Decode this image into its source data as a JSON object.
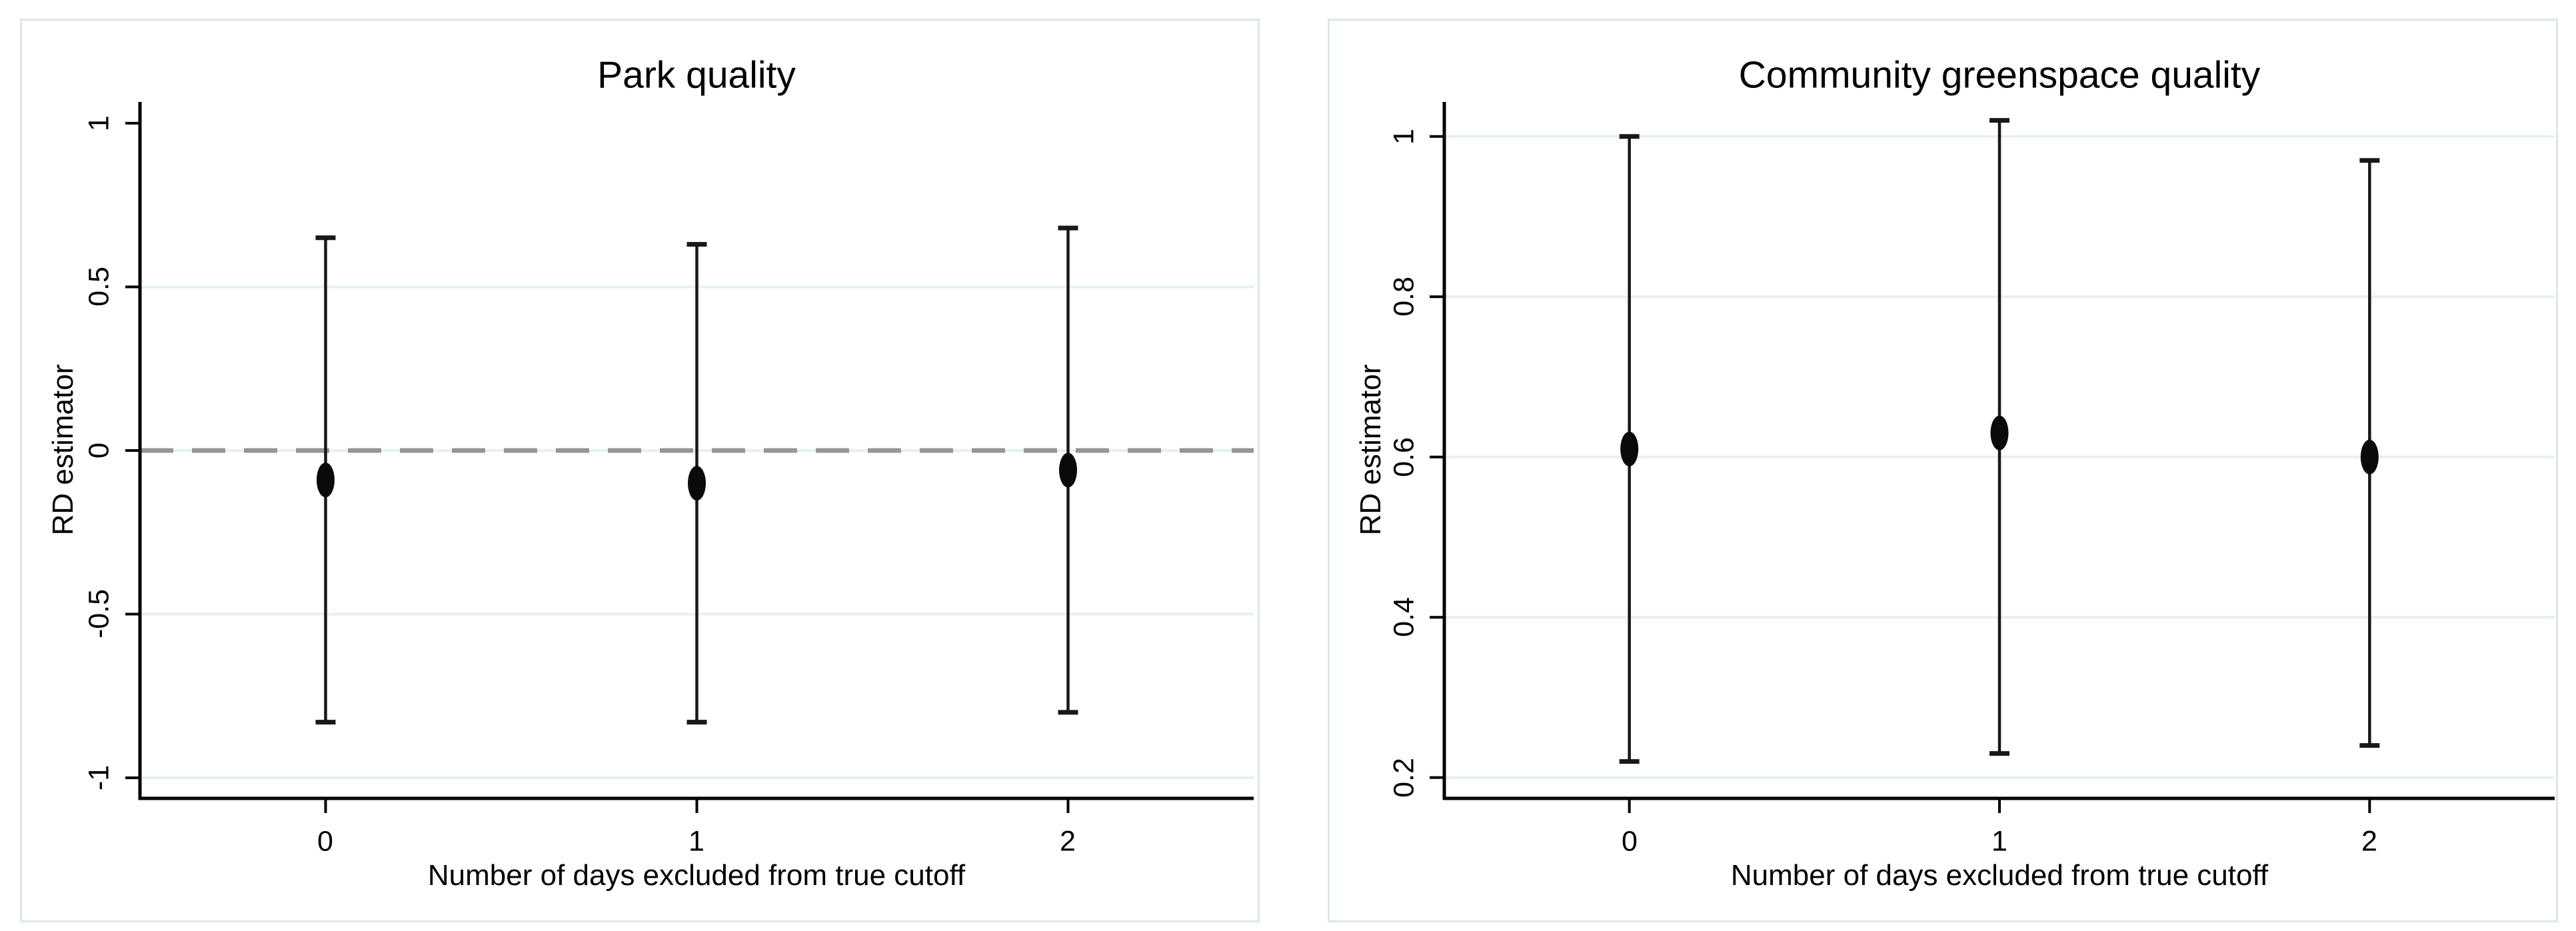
{
  "colors": {
    "background": "#ffffff",
    "panel_border": "#dde6e8",
    "grid": "#e6f0f1",
    "axis": "#000000",
    "error_bar": "#181818",
    "marker": "#0a0a0a",
    "refline": "#969696",
    "text": "#000000"
  },
  "chart_data": [
    {
      "type": "scatter",
      "subtype": "point-estimates-with-confidence-intervals",
      "title": "Park quality",
      "xlabel": "Number of days excluded from true cutoff",
      "ylabel": "RD estimator",
      "categories": [
        "0",
        "1",
        "2"
      ],
      "series": [
        {
          "name": "RD estimate",
          "points": [
            -0.09,
            -0.1,
            -0.06
          ],
          "ci_low": [
            -0.83,
            -0.83,
            -0.8
          ],
          "ci_high": [
            0.65,
            0.63,
            0.68
          ]
        }
      ],
      "yticks": [
        {
          "value": 1,
          "label": "1"
        },
        {
          "value": 0.5,
          "label": "0.5"
        },
        {
          "value": 0,
          "label": "0"
        },
        {
          "value": -0.5,
          "label": "-0.5"
        },
        {
          "value": -1,
          "label": "-1"
        }
      ],
      "ylim": [
        -1.063,
        1.065
      ],
      "grid_values": [
        0.5,
        0,
        -0.5,
        -1
      ],
      "refline": {
        "value": 0,
        "style": "dashed"
      },
      "grid": "on",
      "legend": "none"
    },
    {
      "type": "scatter",
      "subtype": "point-estimates-with-confidence-intervals",
      "title": "Community greenspace quality",
      "xlabel": "Number of days excluded from true cutoff",
      "ylabel": "RD estimator",
      "categories": [
        "0",
        "1",
        "2"
      ],
      "series": [
        {
          "name": "RD estimate",
          "points": [
            0.61,
            0.63,
            0.6
          ],
          "ci_low": [
            0.22,
            0.23,
            0.24
          ],
          "ci_high": [
            1.0,
            1.02,
            0.97
          ]
        }
      ],
      "yticks": [
        {
          "value": 1,
          "label": "1"
        },
        {
          "value": 0.8,
          "label": "0.8"
        },
        {
          "value": 0.6,
          "label": "0.6"
        },
        {
          "value": 0.4,
          "label": "0.4"
        },
        {
          "value": 0.2,
          "label": "0.2"
        }
      ],
      "ylim": [
        0.174,
        1.043
      ],
      "grid_values": [
        1,
        0.8,
        0.6,
        0.4,
        0.2
      ],
      "refline": null,
      "grid": "on",
      "legend": "none"
    }
  ]
}
